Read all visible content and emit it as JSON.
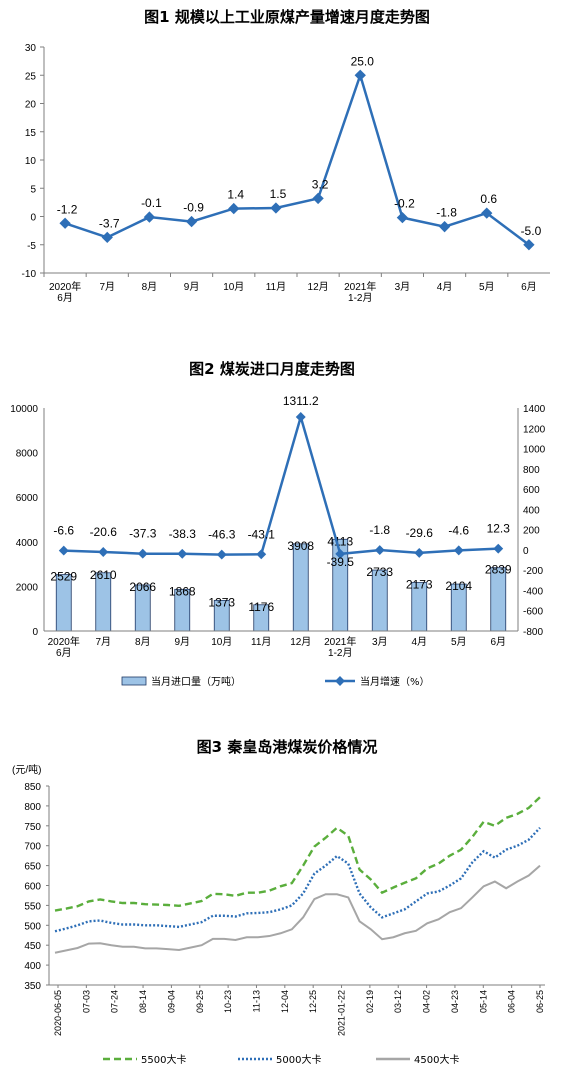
{
  "chart_data": [
    {
      "type": "line",
      "title": "图1  规模以上工业原煤产量增速月度走势图",
      "categories": [
        "2020年\n6月",
        "7月",
        "8月",
        "9月",
        "10月",
        "11月",
        "12月",
        "2021年\n1-2月",
        "3月",
        "4月",
        "5月",
        "6月"
      ],
      "values": [
        -1.2,
        -3.7,
        -0.1,
        -0.9,
        1.4,
        1.5,
        3.2,
        25.0,
        -0.2,
        -1.8,
        0.6,
        -5.0
      ],
      "value_labels": [
        "-1.2",
        "-3.7",
        "-0.1",
        "-0.9",
        "1.4",
        "1.5",
        "3.2",
        "25.0",
        "-0.2",
        "-1.8",
        "0.6",
        "-5.0"
      ],
      "ylim": [
        -10,
        30
      ],
      "yticks": [
        -10,
        -5,
        0,
        5,
        10,
        15,
        20,
        25,
        30
      ],
      "color": "#2E6FB7"
    },
    {
      "type": "bar+line",
      "title": "图2  煤炭进口月度走势图",
      "categories": [
        "2020年\n6月",
        "7月",
        "8月",
        "9月",
        "10月",
        "11月",
        "12月",
        "2021年\n1-2月",
        "3月",
        "4月",
        "5月",
        "6月"
      ],
      "series": [
        {
          "name": "当月进口量（万吨）",
          "type": "bar",
          "axis": "left",
          "values": [
            2529,
            2610,
            2066,
            1868,
            1373,
            1176,
            3908,
            4113,
            2733,
            2173,
            2104,
            2839
          ]
        },
        {
          "name": "当月增速（%）",
          "type": "line",
          "axis": "right",
          "values": [
            -6.6,
            -20.6,
            -37.3,
            -38.3,
            -46.3,
            -43.1,
            1311.2,
            -39.5,
            -1.8,
            -29.6,
            -4.6,
            12.3
          ]
        }
      ],
      "bar_labels": [
        "2529",
        "2610",
        "2066",
        "1868",
        "1373",
        "1176",
        "3908",
        "4113",
        "2733",
        "2173",
        "2104",
        "2839"
      ],
      "line_labels": [
        "-6.6",
        "-20.6",
        "-37.3",
        "-38.3",
        "-46.3",
        "-43.1",
        "1311.2",
        "-39.5",
        "-1.8",
        "-29.6",
        "-4.6",
        "12.3"
      ],
      "ylim_left": [
        0,
        10000
      ],
      "yticks_left": [
        0,
        2000,
        4000,
        6000,
        8000,
        10000
      ],
      "ylim_right": [
        -800,
        1400
      ],
      "yticks_right": [
        -800,
        -600,
        -400,
        -200,
        0,
        200,
        400,
        600,
        800,
        1000,
        1200,
        1400
      ],
      "bar_color": "#9DC3E6",
      "line_color": "#2E6FB7"
    },
    {
      "type": "line",
      "title": "图3  秦皇岛港煤炭价格情况",
      "ylabel": "(元/吨)",
      "ylim": [
        350,
        850
      ],
      "yticks": [
        350,
        400,
        450,
        500,
        550,
        600,
        650,
        700,
        750,
        800,
        850
      ],
      "xtick_labels": [
        "2020-06-05",
        "07-03",
        "07-24",
        "08-14",
        "09-04",
        "09-25",
        "10-23",
        "11-13",
        "12-04",
        "12-25",
        "2021-01-22",
        "02-19",
        "03-12",
        "04-02",
        "04-23",
        "05-14",
        "06-04",
        "06-25"
      ],
      "series": [
        {
          "name": "5500大卡",
          "color": "#5AAE3C",
          "dash": "dashed",
          "values": [
            537,
            542,
            548,
            560,
            565,
            560,
            556,
            556,
            553,
            552,
            551,
            549,
            555,
            561,
            579,
            578,
            574,
            582,
            582,
            587,
            598,
            606,
            650,
            698,
            720,
            745,
            725,
            640,
            615,
            582,
            595,
            607,
            618,
            643,
            655,
            675,
            690,
            722,
            760,
            750,
            770,
            780,
            795,
            822
          ]
        },
        {
          "name": "5000大卡",
          "color": "#2E6FB7",
          "dash": "dotted",
          "values": [
            485,
            492,
            500,
            510,
            512,
            506,
            502,
            502,
            500,
            500,
            498,
            496,
            502,
            508,
            524,
            524,
            522,
            530,
            531,
            533,
            540,
            550,
            580,
            630,
            650,
            674,
            655,
            580,
            545,
            520,
            530,
            540,
            560,
            580,
            585,
            600,
            618,
            658,
            686,
            670,
            690,
            700,
            715,
            745
          ]
        },
        {
          "name": "4500大卡",
          "color": "#A6A6A6",
          "dash": "solid",
          "values": [
            431,
            437,
            443,
            454,
            455,
            450,
            446,
            446,
            442,
            442,
            440,
            438,
            444,
            450,
            466,
            466,
            463,
            470,
            470,
            473,
            480,
            490,
            520,
            566,
            578,
            578,
            570,
            510,
            490,
            465,
            470,
            480,
            486,
            505,
            515,
            533,
            543,
            570,
            598,
            610,
            593,
            610,
            625,
            650
          ]
        }
      ]
    }
  ]
}
